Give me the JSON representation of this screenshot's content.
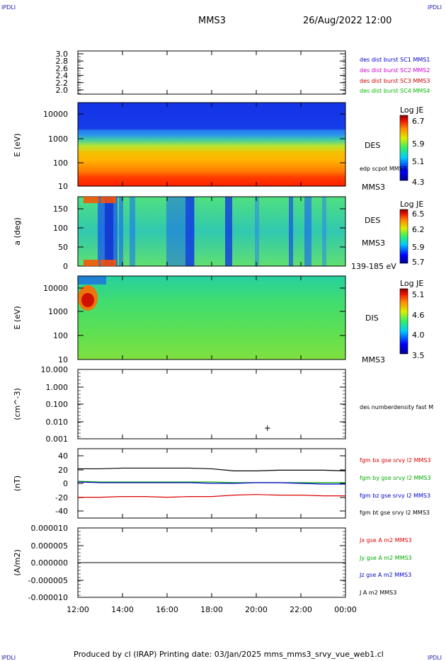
{
  "corners": {
    "tl": "IPDLI",
    "tr": "IPDLI",
    "bl": "IPDLI",
    "br": "IPDLI"
  },
  "header": {
    "spacecraft": "MMS3",
    "datetime": "26/Aug/2022 12:00"
  },
  "footer": {
    "text": "Produced by cl (IRAP)   Printing date: 03/Jan/2025   mms_mms3_srvy_vue_web1.cl"
  },
  "colors": {
    "mms1": "#0000cc",
    "mms2": "#cc00cc",
    "mms3": "#cc0000",
    "mms4": "#00bb00",
    "bx": "#dd0000",
    "by": "#00aa00",
    "bz": "#0000cc",
    "bt": "#000000"
  },
  "chart_data": [
    {
      "type": "line",
      "id": "panel1",
      "ylabel": "",
      "ylim": [
        2.0,
        3.0
      ],
      "y_ticks": [
        "3.0",
        "2.8",
        "2.6",
        "2.4",
        "2.2",
        "2.0"
      ],
      "series": [
        {
          "name": "des dist burst SC1 MMS1",
          "values": []
        },
        {
          "name": "des dist burst SC2 MMS2",
          "values": []
        },
        {
          "name": "des dist burst SC3 MMS3",
          "values": []
        },
        {
          "name": "des dist burst SC4 MMS4",
          "values": []
        }
      ]
    },
    {
      "type": "heatmap",
      "id": "panel2",
      "ylabel": "E (eV)",
      "yscale": "log",
      "y_ticks": [
        "10000",
        "1000",
        "100",
        "10"
      ],
      "right_labels": [
        "DES",
        "edp scpot MMS3",
        "MMS3"
      ],
      "colorbar": {
        "label": "Log JE",
        "ticks": [
          "6.7",
          "5.9",
          "5.1",
          "4.3"
        ],
        "range": [
          4.3,
          6.7
        ]
      }
    },
    {
      "type": "heatmap",
      "id": "panel3",
      "ylabel": "a (deg)",
      "ylim": [
        0,
        180
      ],
      "y_ticks": [
        "150",
        "100",
        "50",
        "0"
      ],
      "right_labels": [
        "DES",
        "MMS3",
        "139-185 eV"
      ],
      "colorbar": {
        "label": "Log JE",
        "ticks": [
          "6.5",
          "6.2",
          "5.9",
          "5.7"
        ],
        "range": [
          5.7,
          6.5
        ]
      }
    },
    {
      "type": "heatmap",
      "id": "panel4",
      "ylabel": "E (eV)",
      "yscale": "log",
      "y_ticks": [
        "10000",
        "1000",
        "100",
        "10"
      ],
      "right_labels": [
        "DIS",
        "MMS3"
      ],
      "colorbar": {
        "label": "Log JE",
        "ticks": [
          "5.1",
          "4.6",
          "4.0",
          "3.5"
        ],
        "range": [
          3.5,
          5.1
        ]
      }
    },
    {
      "type": "scatter",
      "id": "panel5",
      "ylabel": "(cm^-3)",
      "yscale": "log",
      "y_ticks": [
        "10.000",
        "1.000",
        "0.100",
        "0.010",
        "0.001"
      ],
      "series": [
        {
          "name": "des numberdensity fast M",
          "points": [
            {
              "x": "20:30",
              "y": 0.005
            }
          ]
        }
      ]
    },
    {
      "type": "line",
      "id": "panel6",
      "ylabel": "(nT)",
      "ylim": [
        -50,
        50
      ],
      "y_ticks": [
        "40",
        "20",
        "0",
        "-20",
        "-40"
      ],
      "series": [
        {
          "name": "fgm bx gse srvy l2 MMS3",
          "approx_values": [
            -20,
            -20,
            -19,
            -19,
            -20,
            -19,
            -19,
            -17,
            -16,
            -17,
            -17,
            -18,
            -18
          ]
        },
        {
          "name": "fgm by gse srvy l2 MMS3",
          "approx_values": [
            3,
            2,
            2,
            2,
            2,
            2,
            2,
            1,
            1,
            1,
            1,
            1,
            1
          ]
        },
        {
          "name": "fgm bz gse srvy l2 MMS3",
          "approx_values": [
            2,
            1,
            1,
            1,
            1,
            1,
            0,
            0,
            1,
            1,
            0,
            -1,
            -1
          ]
        },
        {
          "name": "fgm bt gse srvy l2 MMS3",
          "approx_values": [
            21,
            21,
            22,
            22,
            22,
            22,
            21,
            18,
            18,
            19,
            19,
            19,
            18
          ]
        }
      ]
    },
    {
      "type": "line",
      "id": "panel7",
      "ylabel": "(A/m2)",
      "ylim": [
        -1e-05,
        1e-05
      ],
      "y_ticks": [
        "0.000010",
        "0.000005",
        "0.000000",
        "-0.000005",
        "-0.000010"
      ],
      "series": [
        {
          "name": "Jx gse A m2 MMS3",
          "values": []
        },
        {
          "name": "Jy gse A m2 MMS3",
          "values": []
        },
        {
          "name": "Jz gse A m2 MMS3",
          "values": []
        },
        {
          "name": "J A m2 MMS3",
          "values": [
            0,
            0,
            0,
            0,
            0,
            0,
            0
          ]
        }
      ]
    }
  ],
  "x_ticks": [
    "12:00",
    "14:00",
    "16:00",
    "18:00",
    "20:00",
    "22:00",
    "00:00"
  ]
}
